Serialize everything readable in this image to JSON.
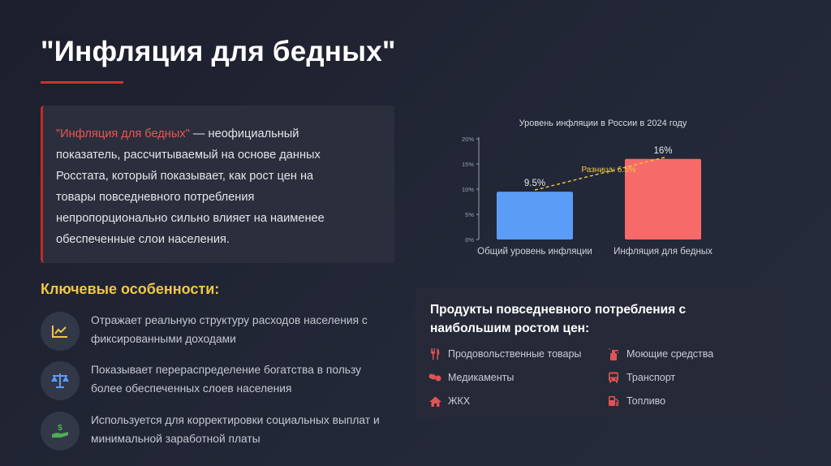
{
  "slide": {
    "title": "\"Инфляция для бедных\""
  },
  "definition": {
    "term": "\"Инфляция для бедных\"",
    "line1_rest": " — неофициальный",
    "line2": "показатель, рассчитываемый на основе данных",
    "line3": "Росстата, который показывает, как рост цен на",
    "line4": "товары повседневного потребления",
    "line5": "непропорционально сильно влияет на наименее",
    "line6": "обеспеченные слои населения."
  },
  "chart_data": {
    "type": "bar",
    "title": "Уровень инфляции в России в 2024 году",
    "categories": [
      "Общий уровень инфляции",
      "Инфляция для бедных"
    ],
    "values": [
      9.5,
      16
    ],
    "value_labels": [
      "9.5%",
      "16%"
    ],
    "colors": [
      "#5b9df6",
      "#f76a6a"
    ],
    "yticks": [
      "0%",
      "5%",
      "10%",
      "15%",
      "20%"
    ],
    "ylim": [
      0,
      20
    ],
    "annotation": "Разница: 6.5%",
    "annotation_color": "#f2c744",
    "grid": false
  },
  "features": {
    "title": "Ключевые особенности:",
    "items": [
      {
        "icon": "chart-line-icon",
        "lines": [
          "Отражает реальную структуру расходов населения с",
          "фиксированными доходами"
        ]
      },
      {
        "icon": "scales-icon",
        "lines": [
          "Показывает перераспределение богатства в пользу",
          "более обеспеченных слоев населения"
        ]
      },
      {
        "icon": "hand-money-icon",
        "lines": [
          "Используется для корректировки социальных выплат и",
          "минимальной заработной платы"
        ]
      }
    ]
  },
  "products": {
    "title_line1": "Продукты повседневного потребления с",
    "title_line2": "наибольшим ростом цен:",
    "items": [
      {
        "label": "Продовольственные товары",
        "icon": "utensils-icon"
      },
      {
        "label": "Моющие средства",
        "icon": "spray-bottle-icon"
      },
      {
        "label": "Медикаменты",
        "icon": "pills-icon"
      },
      {
        "label": "Транспорт",
        "icon": "bus-icon"
      },
      {
        "label": "ЖКХ",
        "icon": "house-icon"
      },
      {
        "label": "Топливо",
        "icon": "gas-pump-icon"
      }
    ],
    "icon_color": "#e05353"
  },
  "colors": {
    "accent_red": "#d32f2f",
    "accent_yellow": "#f2c744",
    "icon_green": "#4caf50",
    "icon_blue": "#5b9df6"
  }
}
